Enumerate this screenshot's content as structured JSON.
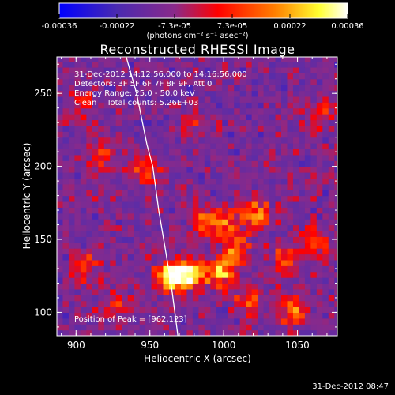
{
  "colorbar": {
    "ticks": [
      "-0.00036",
      "-0.00022",
      "-7.3e-05",
      "7.3e-05",
      "0.00022",
      "0.00036"
    ],
    "unit_label": "(photons cm⁻² s⁻¹ asec⁻²)"
  },
  "chart_data": {
    "type": "heatmap",
    "title": "Reconstructed RHESSI Image",
    "xlabel": "Heliocentric X (arcsec)",
    "ylabel": "Heliocentric Y (arcsec)",
    "xlim": [
      887,
      1077
    ],
    "ylim": [
      84,
      275
    ],
    "xticks": [
      900,
      950,
      1000,
      1050
    ],
    "yticks": [
      100,
      150,
      200,
      250
    ],
    "colorbar_range": [
      -0.00036,
      0.00036
    ],
    "colormap": [
      "#0000ff",
      "#5a2ca8",
      "#8a2a8a",
      "#ff0000",
      "#ff8000",
      "#ffff40",
      "#ffffff"
    ],
    "annotations": [
      "31-Dec-2012 14:12:56.000 to 14:16:56.000",
      "Detectors: 3F 5F 6F 7F 8F 9F, Att 0",
      "Energy Range: 25.0 - 50.0 keV",
      "Clean    Total counts: 5.26E+03"
    ],
    "peak_label": "Position of Peak = [962,123]",
    "peak": {
      "x": 962,
      "y": 123
    },
    "limb_curve": [
      [
        934,
        275
      ],
      [
        941,
        250
      ],
      [
        948,
        215
      ],
      [
        952,
        200
      ],
      [
        956,
        170
      ],
      [
        961,
        140
      ],
      [
        965,
        115
      ],
      [
        969,
        84
      ]
    ],
    "hot_spots": [
      {
        "x": 962,
        "y": 123,
        "value": 0.00036
      },
      {
        "x": 975,
        "y": 125,
        "value": 0.0003
      },
      {
        "x": 995,
        "y": 125,
        "value": 0.00025
      },
      {
        "x": 1005,
        "y": 140,
        "value": 0.00022
      },
      {
        "x": 1020,
        "y": 165,
        "value": 0.00024
      },
      {
        "x": 1000,
        "y": 160,
        "value": 0.00018
      },
      {
        "x": 985,
        "y": 160,
        "value": 0.00018
      },
      {
        "x": 1040,
        "y": 135,
        "value": 0.00016
      },
      {
        "x": 1060,
        "y": 145,
        "value": 0.00015
      },
      {
        "x": 945,
        "y": 195,
        "value": 0.00015
      },
      {
        "x": 915,
        "y": 205,
        "value": 0.00013
      },
      {
        "x": 900,
        "y": 240,
        "value": 0.00012
      },
      {
        "x": 905,
        "y": 130,
        "value": 0.00014
      },
      {
        "x": 925,
        "y": 105,
        "value": 0.00012
      },
      {
        "x": 1045,
        "y": 100,
        "value": 0.0002
      },
      {
        "x": 1015,
        "y": 105,
        "value": 0.00015
      },
      {
        "x": 1065,
        "y": 235,
        "value": 0.0001
      },
      {
        "x": 980,
        "y": 225,
        "value": 9e-05
      }
    ]
  },
  "footer": {
    "timestamp": "31-Dec-2012 08:47"
  }
}
